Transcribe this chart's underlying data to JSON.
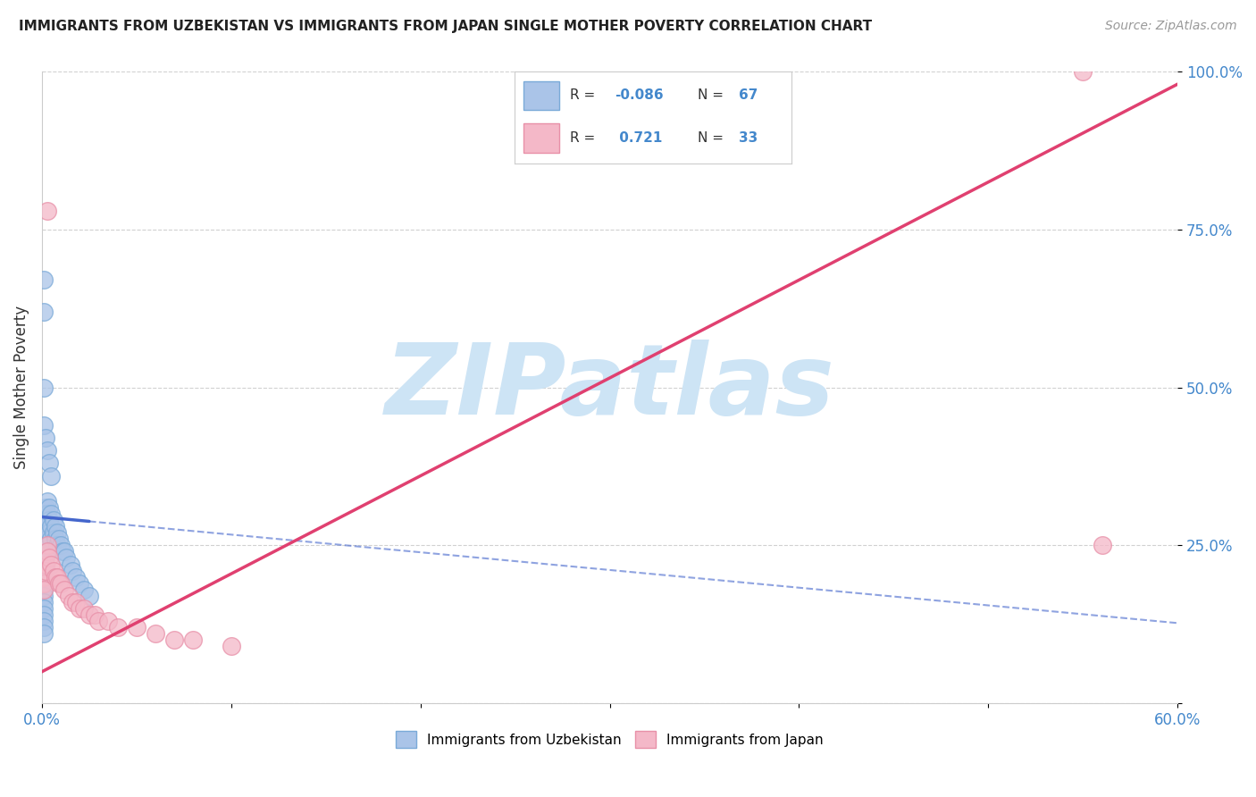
{
  "title": "IMMIGRANTS FROM UZBEKISTAN VS IMMIGRANTS FROM JAPAN SINGLE MOTHER POVERTY CORRELATION CHART",
  "source": "Source: ZipAtlas.com",
  "ylabel": "Single Mother Poverty",
  "xlim": [
    0.0,
    0.6
  ],
  "ylim": [
    0.0,
    1.0
  ],
  "background_color": "#ffffff",
  "grid_color": "#cccccc",
  "watermark_text": "ZIPatlas",
  "watermark_color": "#cde4f5",
  "legend_R1": "-0.086",
  "legend_N1": "67",
  "legend_R2": "0.721",
  "legend_N2": "33",
  "uzbekistan_color": "#aac4e8",
  "japan_color": "#f4b8c8",
  "uzbekistan_edge": "#7aaad8",
  "japan_edge": "#e890a8",
  "blue_line_color": "#4466cc",
  "pink_line_color": "#e04070",
  "tick_color": "#4488cc",
  "uzbekistan_x": [
    0.001,
    0.001,
    0.001,
    0.001,
    0.001,
    0.001,
    0.001,
    0.001,
    0.001,
    0.001,
    0.001,
    0.001,
    0.001,
    0.001,
    0.001,
    0.001,
    0.001,
    0.001,
    0.001,
    0.001,
    0.002,
    0.002,
    0.002,
    0.002,
    0.002,
    0.002,
    0.002,
    0.002,
    0.002,
    0.002,
    0.003,
    0.003,
    0.003,
    0.003,
    0.003,
    0.004,
    0.004,
    0.004,
    0.004,
    0.005,
    0.005,
    0.005,
    0.006,
    0.006,
    0.007,
    0.007,
    0.008,
    0.008,
    0.009,
    0.01,
    0.011,
    0.012,
    0.013,
    0.015,
    0.016,
    0.018,
    0.02,
    0.022,
    0.025,
    0.001,
    0.001,
    0.001,
    0.001,
    0.002,
    0.003,
    0.004,
    0.005
  ],
  "uzbekistan_y": [
    0.3,
    0.29,
    0.28,
    0.27,
    0.26,
    0.25,
    0.24,
    0.23,
    0.22,
    0.21,
    0.2,
    0.19,
    0.18,
    0.17,
    0.16,
    0.15,
    0.14,
    0.13,
    0.12,
    0.11,
    0.31,
    0.3,
    0.29,
    0.28,
    0.27,
    0.26,
    0.25,
    0.24,
    0.23,
    0.22,
    0.32,
    0.3,
    0.28,
    0.26,
    0.24,
    0.31,
    0.29,
    0.27,
    0.25,
    0.3,
    0.28,
    0.26,
    0.29,
    0.27,
    0.28,
    0.26,
    0.27,
    0.25,
    0.26,
    0.25,
    0.24,
    0.24,
    0.23,
    0.22,
    0.21,
    0.2,
    0.19,
    0.18,
    0.17,
    0.67,
    0.62,
    0.5,
    0.44,
    0.42,
    0.4,
    0.38,
    0.36
  ],
  "japan_x": [
    0.001,
    0.001,
    0.001,
    0.002,
    0.002,
    0.003,
    0.003,
    0.004,
    0.005,
    0.006,
    0.007,
    0.008,
    0.009,
    0.01,
    0.012,
    0.014,
    0.016,
    0.018,
    0.02,
    0.022,
    0.025,
    0.028,
    0.03,
    0.035,
    0.04,
    0.05,
    0.06,
    0.07,
    0.08,
    0.1,
    0.55,
    0.56,
    0.003
  ],
  "japan_y": [
    0.2,
    0.19,
    0.18,
    0.22,
    0.21,
    0.25,
    0.24,
    0.23,
    0.22,
    0.21,
    0.2,
    0.2,
    0.19,
    0.19,
    0.18,
    0.17,
    0.16,
    0.16,
    0.15,
    0.15,
    0.14,
    0.14,
    0.13,
    0.13,
    0.12,
    0.12,
    0.11,
    0.1,
    0.1,
    0.09,
    1.0,
    0.25,
    0.78
  ]
}
